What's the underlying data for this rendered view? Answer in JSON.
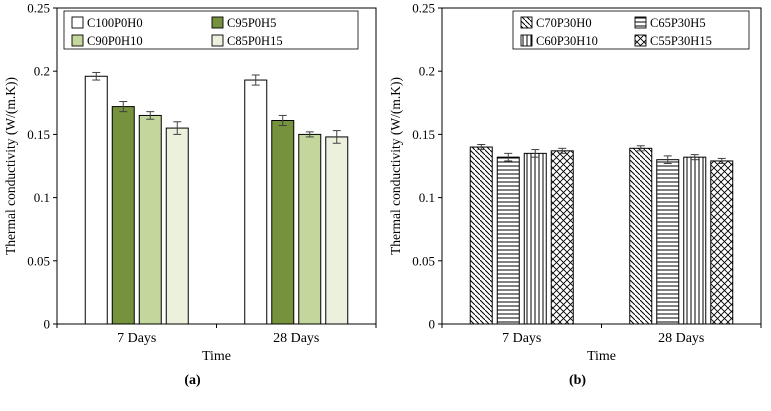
{
  "figure": {
    "captions": [
      "(a)",
      "(b)"
    ]
  },
  "chart_data": [
    {
      "type": "bar",
      "panel": "a",
      "title": "",
      "categories": [
        "7 Days",
        "28 Days"
      ],
      "xlabel": "Time",
      "ylabel": "Thermal conductivity (W/(m.K))",
      "ylim": [
        0,
        0.25
      ],
      "yticks": [
        0,
        0.05,
        0.1,
        0.15,
        0.2,
        0.25
      ],
      "ytick_labels": [
        "0",
        "0.05",
        "0.1",
        "0.15",
        "0.2",
        "0.25"
      ],
      "legend_position": "top-inside",
      "grid": false,
      "series": [
        {
          "name": "C100P0H0",
          "fill": "solid",
          "color": "#ffffff",
          "values": [
            0.196,
            0.193
          ],
          "errors": [
            0.003,
            0.004
          ]
        },
        {
          "name": "C95P0H5",
          "fill": "solid",
          "color": "#76923c",
          "values": [
            0.172,
            0.161
          ],
          "errors": [
            0.004,
            0.004
          ]
        },
        {
          "name": "C90P0H10",
          "fill": "solid",
          "color": "#c3d69b",
          "values": [
            0.165,
            0.15
          ],
          "errors": [
            0.003,
            0.002
          ]
        },
        {
          "name": "C85P0H15",
          "fill": "solid",
          "color": "#ebf1dd",
          "values": [
            0.155,
            0.148
          ],
          "errors": [
            0.005,
            0.005
          ]
        }
      ]
    },
    {
      "type": "bar",
      "panel": "b",
      "title": "",
      "categories": [
        "7 Days",
        "28 Days"
      ],
      "xlabel": "Time",
      "ylabel": "Thermal conductivity (W/(m.K))",
      "ylim": [
        0,
        0.25
      ],
      "yticks": [
        0,
        0.05,
        0.1,
        0.15,
        0.2,
        0.25
      ],
      "ytick_labels": [
        "0",
        "0.05",
        "0.1",
        "0.15",
        "0.2",
        "0.25"
      ],
      "legend_position": "top-inside",
      "grid": false,
      "series": [
        {
          "name": "C70P30H0",
          "fill": "hatch-diag",
          "color": "#000000",
          "values": [
            0.14,
            0.139
          ],
          "errors": [
            0.002,
            0.002
          ]
        },
        {
          "name": "C65P30H5",
          "fill": "hatch-horiz",
          "color": "#000000",
          "values": [
            0.132,
            0.13
          ],
          "errors": [
            0.003,
            0.003
          ]
        },
        {
          "name": "C60P30H10",
          "fill": "hatch-vert",
          "color": "#000000",
          "values": [
            0.135,
            0.132
          ],
          "errors": [
            0.003,
            0.002
          ]
        },
        {
          "name": "C55P30H15",
          "fill": "hatch-cross",
          "color": "#000000",
          "values": [
            0.137,
            0.129
          ],
          "errors": [
            0.002,
            0.002
          ]
        }
      ]
    }
  ]
}
